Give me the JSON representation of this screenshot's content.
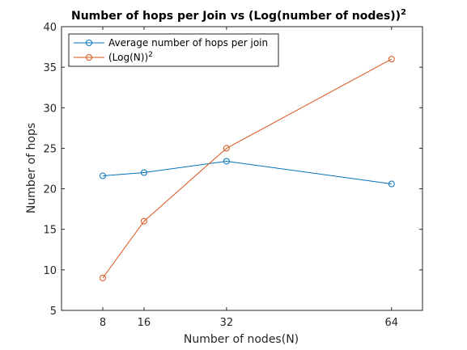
{
  "chart_data": {
    "type": "line",
    "title": "Number of hops per Join vs (Log(number of nodes))",
    "title_superscript": "2",
    "xlabel": "Number of nodes(N)",
    "ylabel": "Number of hops",
    "x": [
      8,
      16,
      32,
      64
    ],
    "xlim": [
      0,
      70
    ],
    "ylim": [
      5,
      40
    ],
    "xticks": [
      "8",
      "16",
      "32",
      "64"
    ],
    "yticks": [
      "5",
      "10",
      "15",
      "20",
      "25",
      "30",
      "35",
      "40"
    ],
    "grid": false,
    "legend_position": "top-left",
    "marker": "circle",
    "series": [
      {
        "name": "Average number of hops per join",
        "values": [
          21.6,
          22.0,
          23.4,
          20.6
        ],
        "color": "#0072bd"
      },
      {
        "name": "(Log(N))",
        "name_superscript": "2",
        "values": [
          9,
          16,
          25,
          36
        ],
        "color": "#d95319"
      }
    ]
  }
}
